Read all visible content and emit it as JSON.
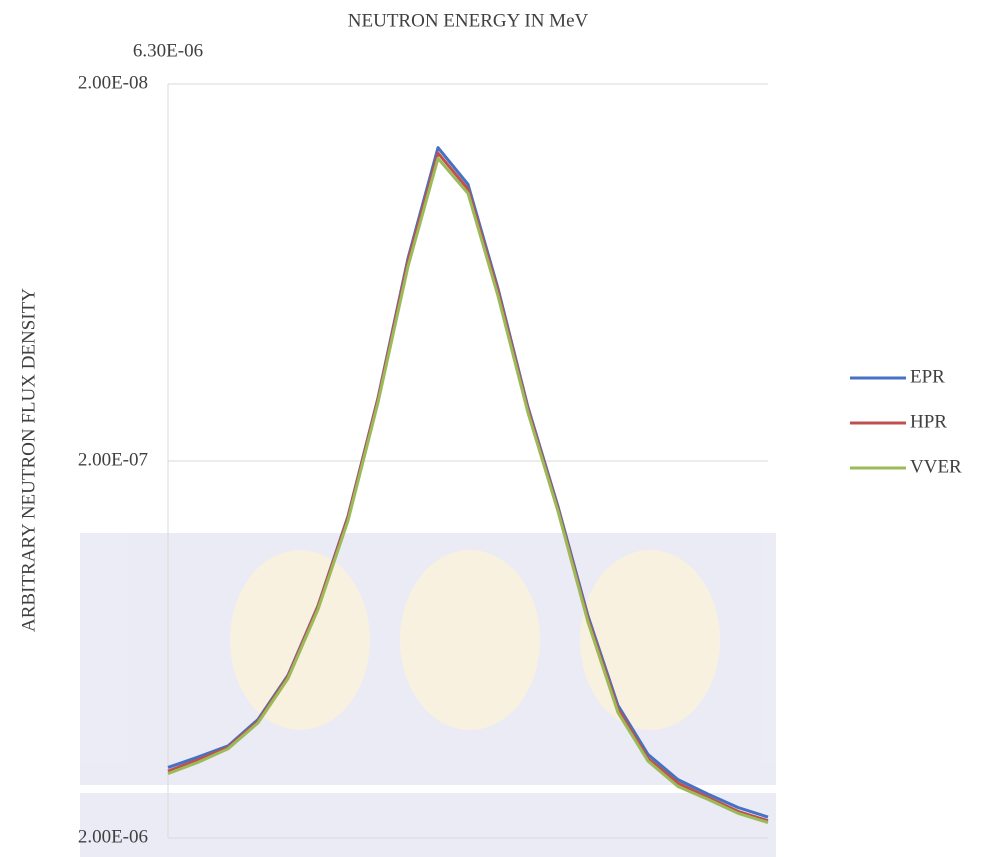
{
  "chart_data": {
    "type": "line",
    "title": "NEUTRON ENERGY IN MeV",
    "y_label": "ARBITRARY NEUTRON FLUX DENSITY",
    "categories": [
      "6.30E-06",
      null,
      null,
      null,
      null,
      null,
      null,
      null,
      null,
      null,
      null,
      null,
      null,
      null,
      null,
      null,
      null,
      null,
      null,
      null,
      null
    ],
    "ylim": [
      2e-08,
      2e-06
    ],
    "y_log": true,
    "y_inverted": true,
    "yticks": [
      {
        "value": 2e-08,
        "label": "2.00E-08"
      },
      {
        "value": 2e-07,
        "label": "2.00E-07"
      },
      {
        "value": 2e-06,
        "label": "2.00E-06"
      }
    ],
    "grid": true,
    "legend": "right",
    "series": [
      {
        "name": "EPR",
        "color": "#4472c4",
        "values": [
          1.3e-06,
          1.22e-06,
          1.14e-06,
          9.7e-07,
          7.4e-07,
          4.84e-07,
          2.8e-07,
          1.36e-07,
          5.8e-08,
          2.95e-08,
          3.69e-08,
          6.97e-08,
          1.44e-07,
          2.64e-07,
          5.15e-07,
          8.9e-07,
          1.2e-06,
          1.4e-06,
          1.53e-06,
          1.66e-06,
          1.76e-06
        ]
      },
      {
        "name": "HPR",
        "color": "#c0504d",
        "values": [
          1.33e-06,
          1.24e-06,
          1.15e-06,
          9.8e-07,
          7.45e-07,
          4.86e-07,
          2.82e-07,
          1.37e-07,
          5.9e-08,
          3.05e-08,
          3.8e-08,
          7.1e-08,
          1.46e-07,
          2.68e-07,
          5.25e-07,
          9.1e-07,
          1.23e-06,
          1.43e-06,
          1.56e-06,
          1.7e-06,
          1.8e-06
        ]
      },
      {
        "name": "VVER",
        "color": "#9bbb59",
        "values": [
          1.35e-06,
          1.26e-06,
          1.16e-06,
          9.9e-07,
          7.55e-07,
          4.95e-07,
          2.88e-07,
          1.4e-07,
          6.1e-08,
          3.15e-08,
          3.9e-08,
          7.3e-08,
          1.49e-07,
          2.72e-07,
          5.35e-07,
          9.3e-07,
          1.25e-06,
          1.46e-06,
          1.58e-06,
          1.72e-06,
          1.82e-06
        ]
      }
    ]
  }
}
